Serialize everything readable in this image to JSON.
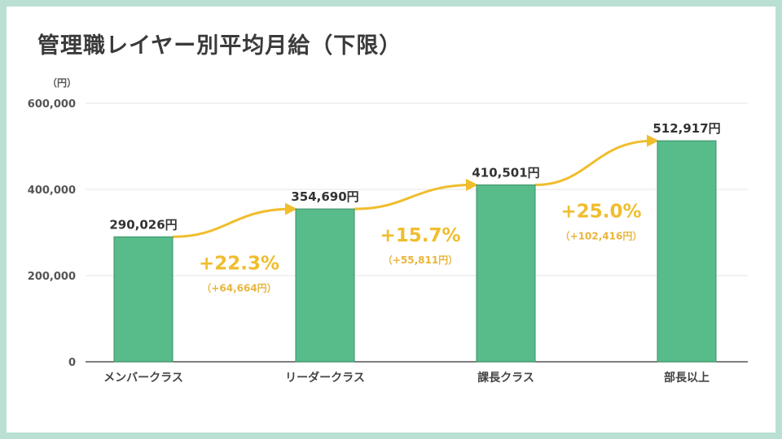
{
  "title": "管理職レイヤー別平均月給（下限）",
  "colors": {
    "bar": "#57bb8a",
    "bar_stroke": "#3b8f66",
    "arrow": "#f0bd2d",
    "grid": "#e4e4e4",
    "frame": "#b9e0d2"
  },
  "chart_data": {
    "type": "bar",
    "ylabel": "（円）",
    "ylim": [
      0,
      600000
    ],
    "yticks": [
      0,
      200000,
      400000,
      600000
    ],
    "ytick_labels": [
      "0",
      "200,000",
      "400,000",
      "600,000"
    ],
    "categories": [
      "メンバークラス",
      "リーダークラス",
      "課長クラス",
      "部長以上"
    ],
    "values": [
      290026,
      354690,
      410501,
      512917
    ],
    "value_labels": [
      "290,026円",
      "354,690円",
      "410,501円",
      "512,917円"
    ],
    "grid": true,
    "annotations": [
      {
        "from": 0,
        "to": 1,
        "percent": "+22.3%",
        "diff": "（+64,664円）"
      },
      {
        "from": 1,
        "to": 2,
        "percent": "+15.7%",
        "diff": "（+55,811円）"
      },
      {
        "from": 2,
        "to": 3,
        "percent": "+25.0%",
        "diff": "（+102,416円）"
      }
    ]
  }
}
